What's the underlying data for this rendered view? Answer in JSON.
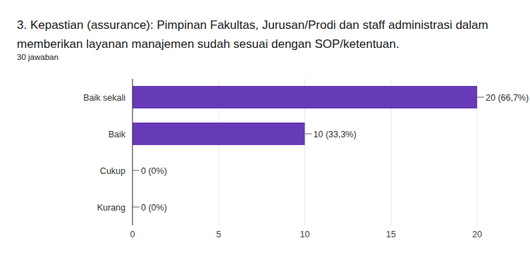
{
  "chart_data": {
    "type": "bar",
    "orientation": "horizontal",
    "title": "3. Kepastian (assurance):  Pimpinan Fakultas, Jurusan/Prodi dan staff administrasi dalam memberikan layanan manajemen sudah sesuai dengan SOP/ketentuan.",
    "subtitle": "30 jawaban",
    "categories": [
      "Baik sekali",
      "Baik",
      "Cukup",
      "Kurang"
    ],
    "values": [
      20,
      10,
      0,
      0
    ],
    "value_labels": [
      "20 (66,7%)",
      "10 (33,3%)",
      "0 (0%)",
      "0 (0%)"
    ],
    "data_labels": true,
    "color": "#673ab7",
    "xlim": [
      0,
      20
    ],
    "xticks": [
      0,
      5,
      10,
      15,
      20
    ],
    "grid": true
  }
}
